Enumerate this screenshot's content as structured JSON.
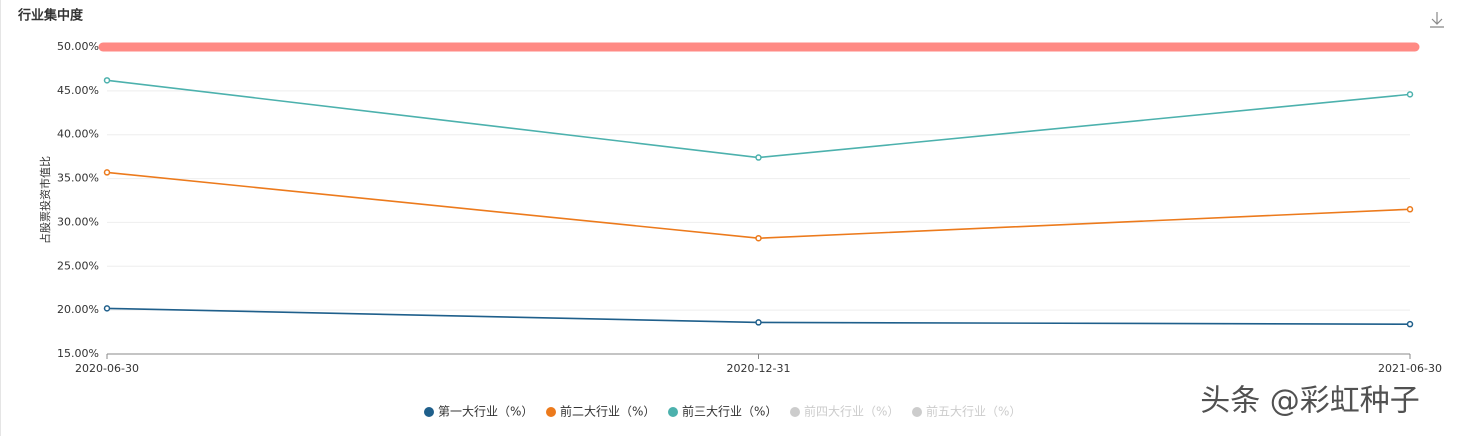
{
  "chart_data": {
    "type": "line",
    "title": "行业集中度",
    "y_label": "占股票投资市值比",
    "categories": [
      "2020-06-30",
      "2020-12-31",
      "2021-06-30"
    ],
    "series": [
      {
        "name": "第一大行业（%）",
        "color": "#1f5f8b",
        "values": [
          20.2,
          18.6,
          18.4
        ]
      },
      {
        "name": "前二大行业（%）",
        "color": "#ec7a1c",
        "values": [
          35.7,
          28.2,
          31.5
        ]
      },
      {
        "name": "前三大行业（%）",
        "color": "#4cb1ad",
        "values": [
          46.2,
          37.4,
          44.6
        ]
      },
      {
        "name": "前四大行业（%）",
        "color": "#cccccc",
        "hidden": true,
        "values": [
          null,
          null,
          null
        ]
      },
      {
        "name": "前五大行业（%）",
        "color": "#cccccc",
        "hidden": true,
        "values": [
          null,
          null,
          null
        ]
      }
    ],
    "reference_line": {
      "value": 50,
      "color": "#ff8a84"
    },
    "ylim": [
      15,
      50
    ],
    "yticks": [
      {
        "value": 15,
        "label": "15.00%"
      },
      {
        "value": 20,
        "label": "20.00%"
      },
      {
        "value": 25,
        "label": "25.00%"
      },
      {
        "value": 30,
        "label": "30.00%"
      },
      {
        "value": 35,
        "label": "35.00%"
      },
      {
        "value": 40,
        "label": "40.00%"
      },
      {
        "value": 45,
        "label": "45.00%"
      },
      {
        "value": 50,
        "label": "50.00%"
      }
    ],
    "grid": true,
    "watermark": "头条 @彩虹种子"
  }
}
